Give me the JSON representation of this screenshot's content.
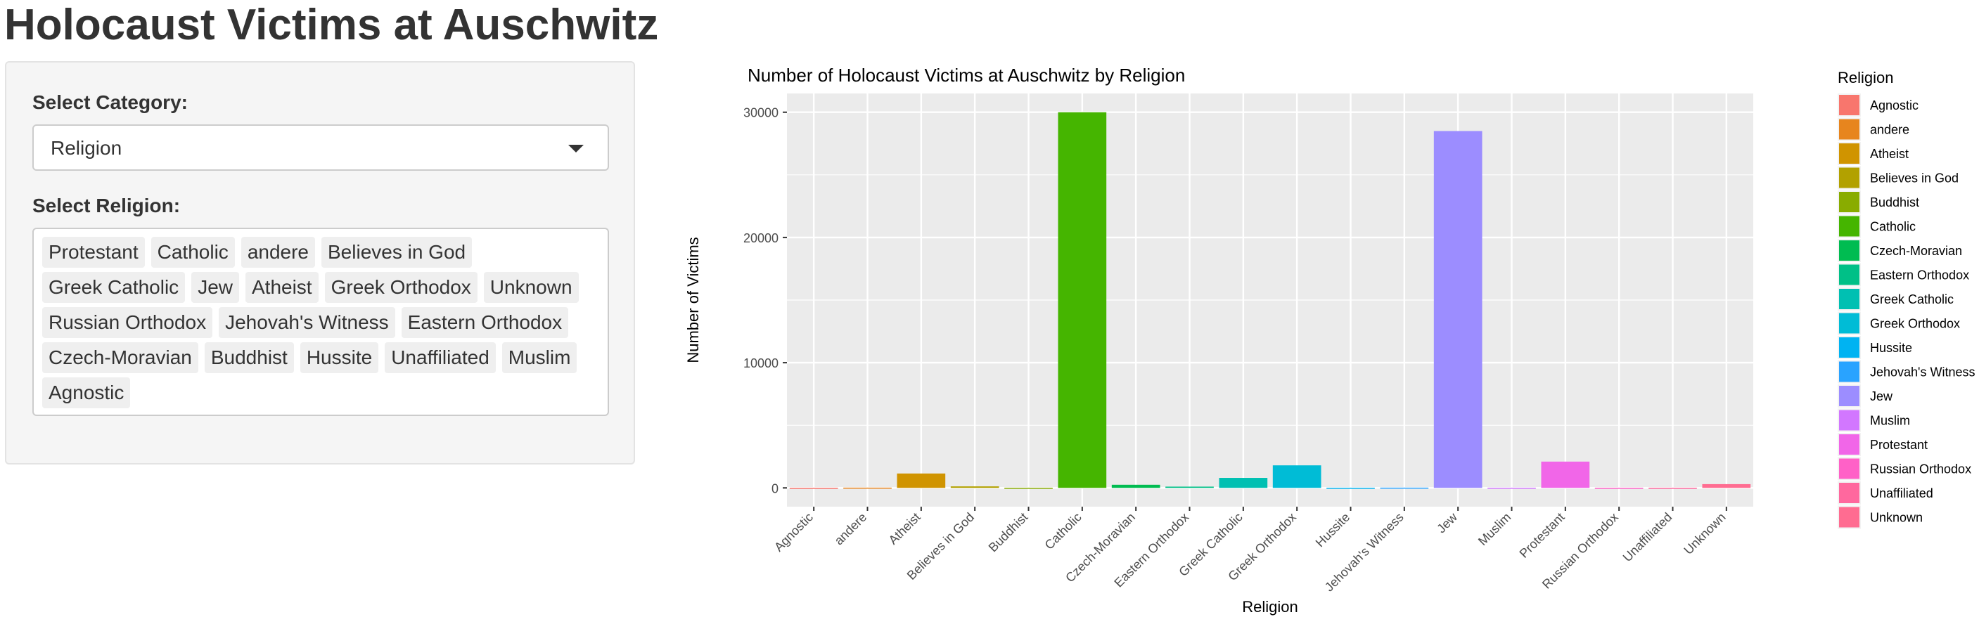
{
  "page": {
    "title": "Holocaust Victims at Auschwitz"
  },
  "sidebar": {
    "category_label": "Select Category:",
    "category_value": "Religion",
    "religion_label": "Select Religion:",
    "religion_selected": [
      "Protestant",
      "Catholic",
      "andere",
      "Believes in God",
      "Greek Catholic",
      "Jew",
      "Atheist",
      "Greek Orthodox",
      "Unknown",
      "Russian Orthodox",
      "Jehovah's Witness",
      "Eastern Orthodox",
      "Czech-Moravian",
      "Buddhist",
      "Hussite",
      "Unaffiliated",
      "Muslim",
      "Agnostic"
    ]
  },
  "chart_data": {
    "type": "bar",
    "title": "Number of Holocaust Victims at Auschwitz by Religion",
    "xlabel": "Religion",
    "ylabel": "Number of Victims",
    "ylim": [
      -1500,
      31500
    ],
    "yticks": [
      0,
      10000,
      20000,
      30000
    ],
    "grid": true,
    "legend": {
      "title": "Religion",
      "position": "right"
    },
    "categories": [
      "Agnostic",
      "andere",
      "Atheist",
      "Believes in God",
      "Buddhist",
      "Catholic",
      "Czech-Moravian",
      "Eastern Orthodox",
      "Greek Catholic",
      "Greek Orthodox",
      "Hussite",
      "Jehovah's Witness",
      "Jew",
      "Muslim",
      "Protestant",
      "Russian Orthodox",
      "Unaffiliated",
      "Unknown"
    ],
    "values": [
      5,
      20,
      1150,
      120,
      10,
      30000,
      250,
      100,
      800,
      1800,
      10,
      20,
      28500,
      15,
      2100,
      10,
      10,
      300
    ],
    "colors": [
      "#F8766D",
      "#E7851E",
      "#D09400",
      "#B2A100",
      "#89AC00",
      "#45B500",
      "#00BC51",
      "#00C087",
      "#00C0B2",
      "#00BCD6",
      "#00B3F2",
      "#29A3FF",
      "#9C8DFF",
      "#D277FF",
      "#F166E8",
      "#FF61C7",
      "#FF689E",
      "#FF6C91"
    ]
  }
}
